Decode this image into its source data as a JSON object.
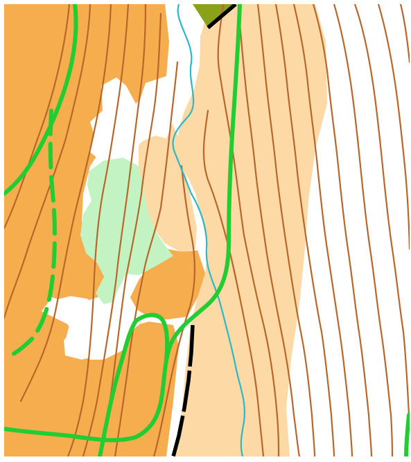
{
  "map": {
    "kind": "orienteering-map",
    "colors": {
      "background": "#ffffff",
      "open_land_dark": "#f6ad4d",
      "open_land_light": "#fdd9a5",
      "vegetation_light_green": "#c3f2c3",
      "olive_area": "#8aa11a",
      "contour": "#b8662a",
      "stream": "#2bb8c8",
      "path_green": "#22cc33",
      "road_black": "#000000"
    },
    "features": [
      {
        "name": "dark-open-land",
        "color_key": "open_land_dark"
      },
      {
        "name": "light-open-land",
        "color_key": "open_land_light"
      },
      {
        "name": "light-green-vegetation",
        "color_key": "vegetation_light_green"
      },
      {
        "name": "olive-area",
        "color_key": "olive_area"
      },
      {
        "name": "contour-lines",
        "color_key": "contour"
      },
      {
        "name": "stream",
        "color_key": "stream"
      },
      {
        "name": "green-trails",
        "color_key": "path_green"
      },
      {
        "name": "black-track",
        "color_key": "road_black"
      }
    ]
  }
}
